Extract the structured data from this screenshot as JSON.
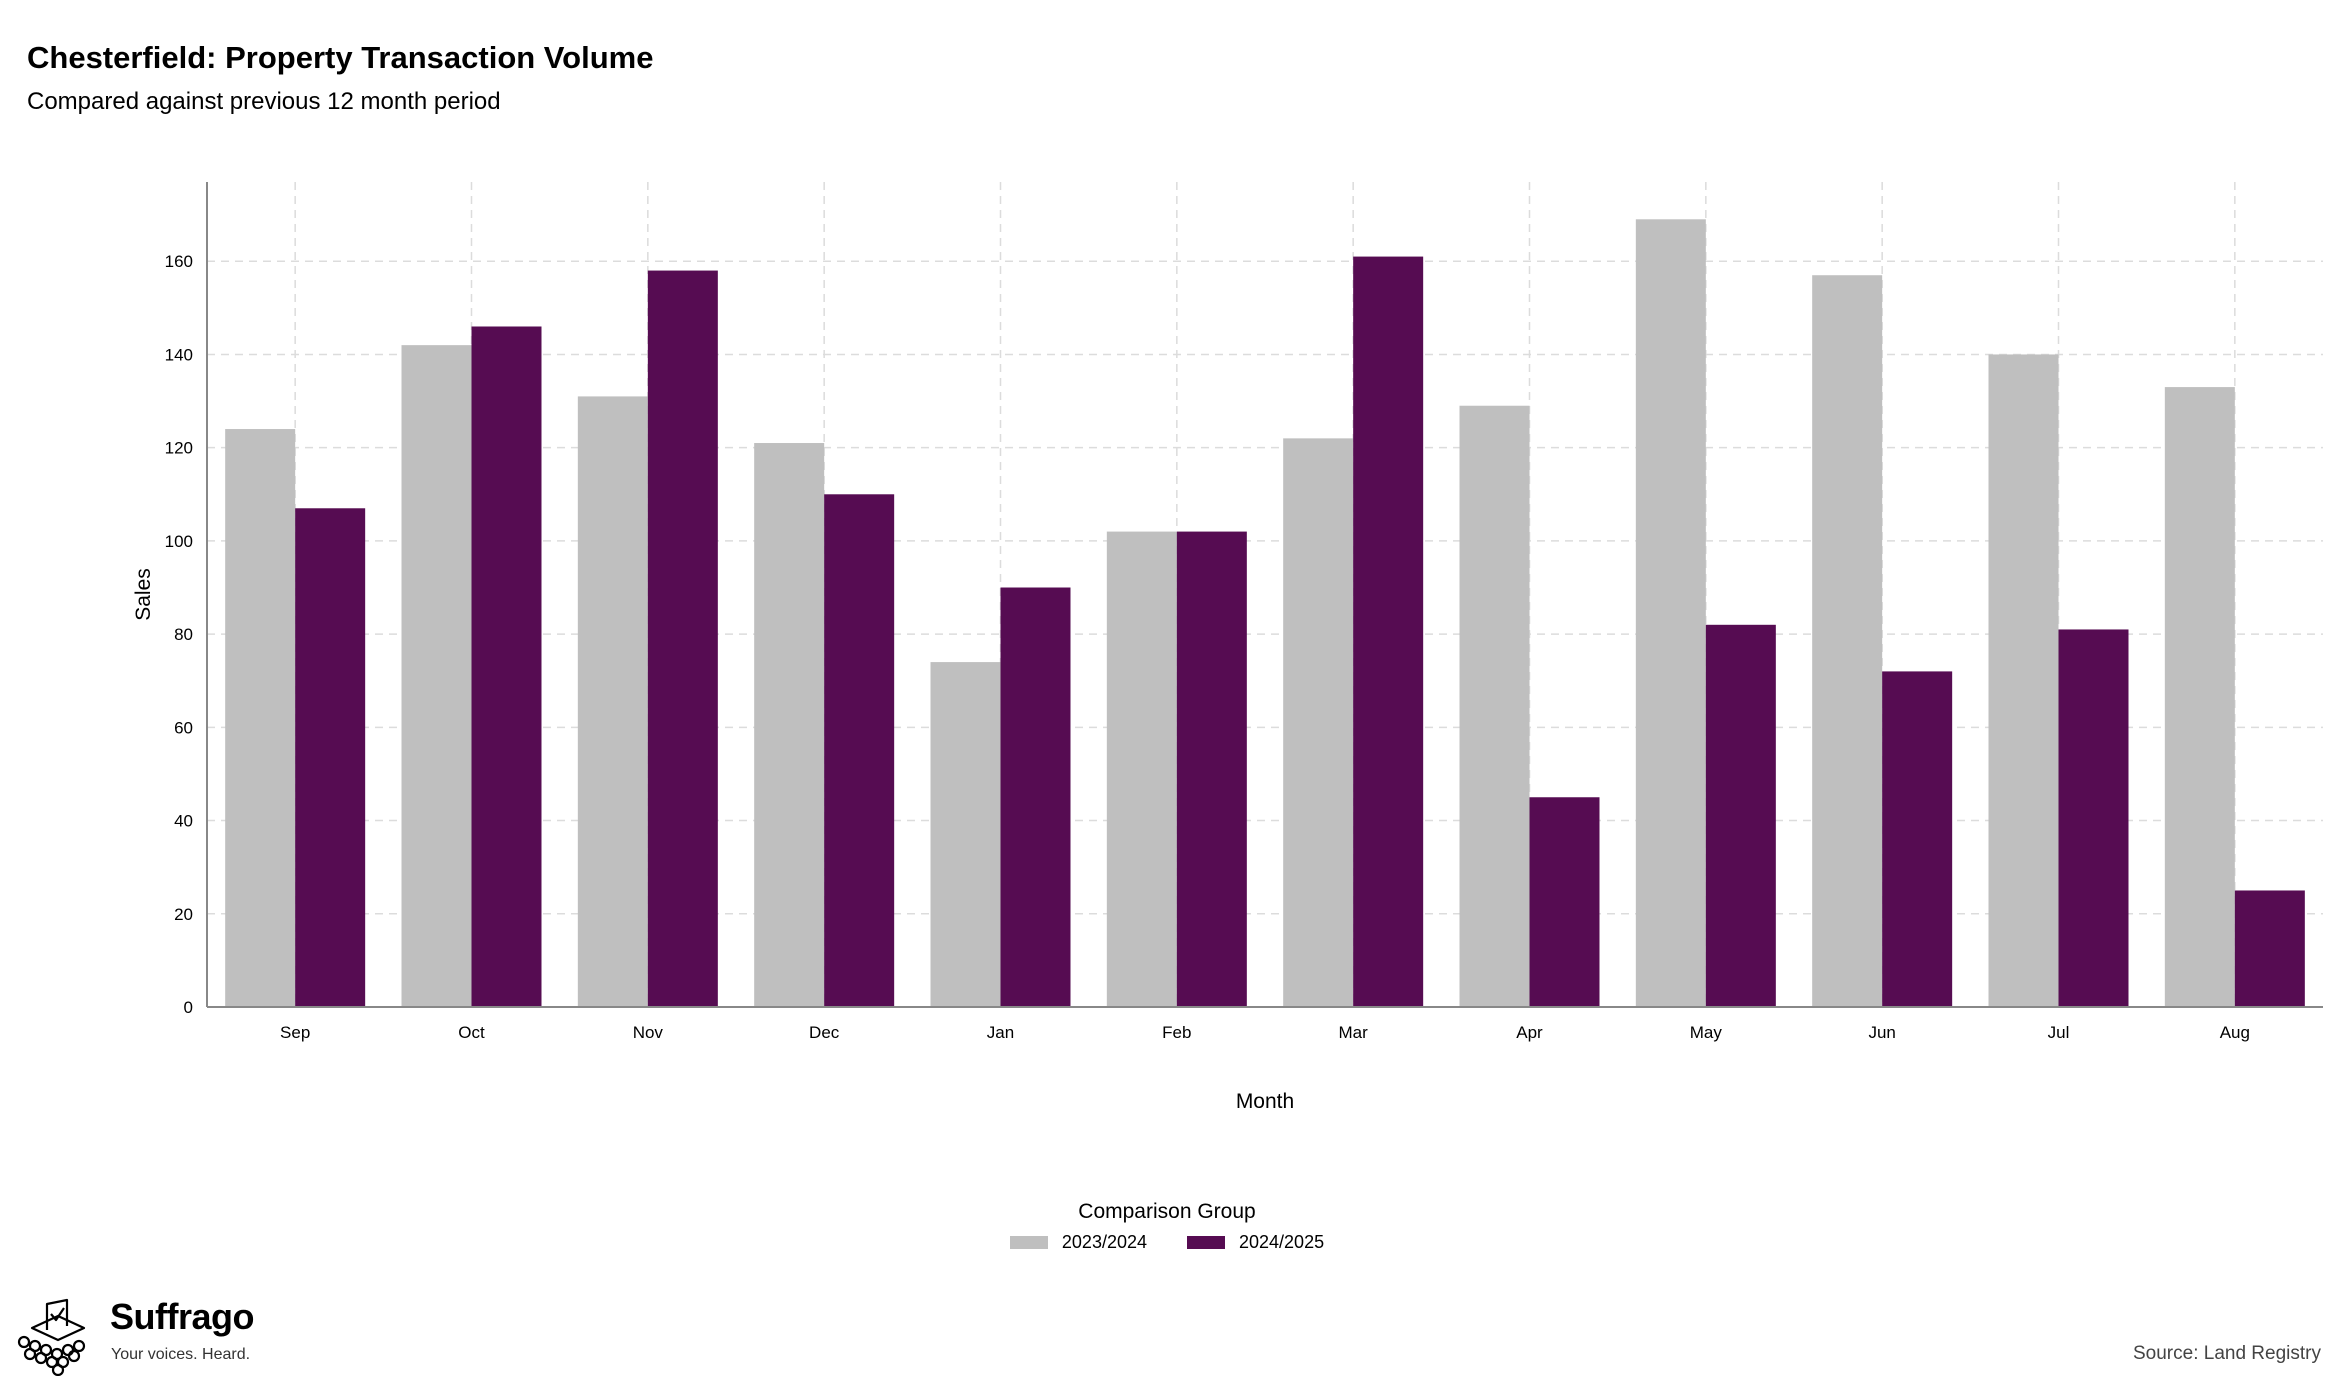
{
  "header": {
    "title": "Chesterfield: Property Transaction Volume",
    "subtitle": "Compared against previous 12 month period"
  },
  "chart_data": {
    "type": "bar",
    "categories": [
      "Sep",
      "Oct",
      "Nov",
      "Dec",
      "Jan",
      "Feb",
      "Mar",
      "Apr",
      "May",
      "Jun",
      "Jul",
      "Aug"
    ],
    "series": [
      {
        "name": "2023/2024",
        "color": "#bfbfbf",
        "values": [
          124,
          142,
          131,
          121,
          74,
          102,
          122,
          129,
          169,
          157,
          140,
          133
        ]
      },
      {
        "name": "2024/2025",
        "color": "#560c52",
        "values": [
          107,
          146,
          158,
          110,
          90,
          102,
          161,
          45,
          82,
          72,
          81,
          25
        ]
      }
    ],
    "xlabel": "Month",
    "ylabel": "Sales",
    "ylim": [
      0,
      177
    ],
    "yticks": [
      0,
      20,
      40,
      60,
      80,
      100,
      120,
      140,
      160
    ],
    "grid": true,
    "legend": {
      "title": "Comparison Group",
      "placement": "bottom"
    }
  },
  "branding": {
    "name": "Suffrago",
    "tagline": "Your voices. Heard.",
    "icon": "ballot-box-icon"
  },
  "footer": {
    "source": "Source: Land Registry"
  }
}
